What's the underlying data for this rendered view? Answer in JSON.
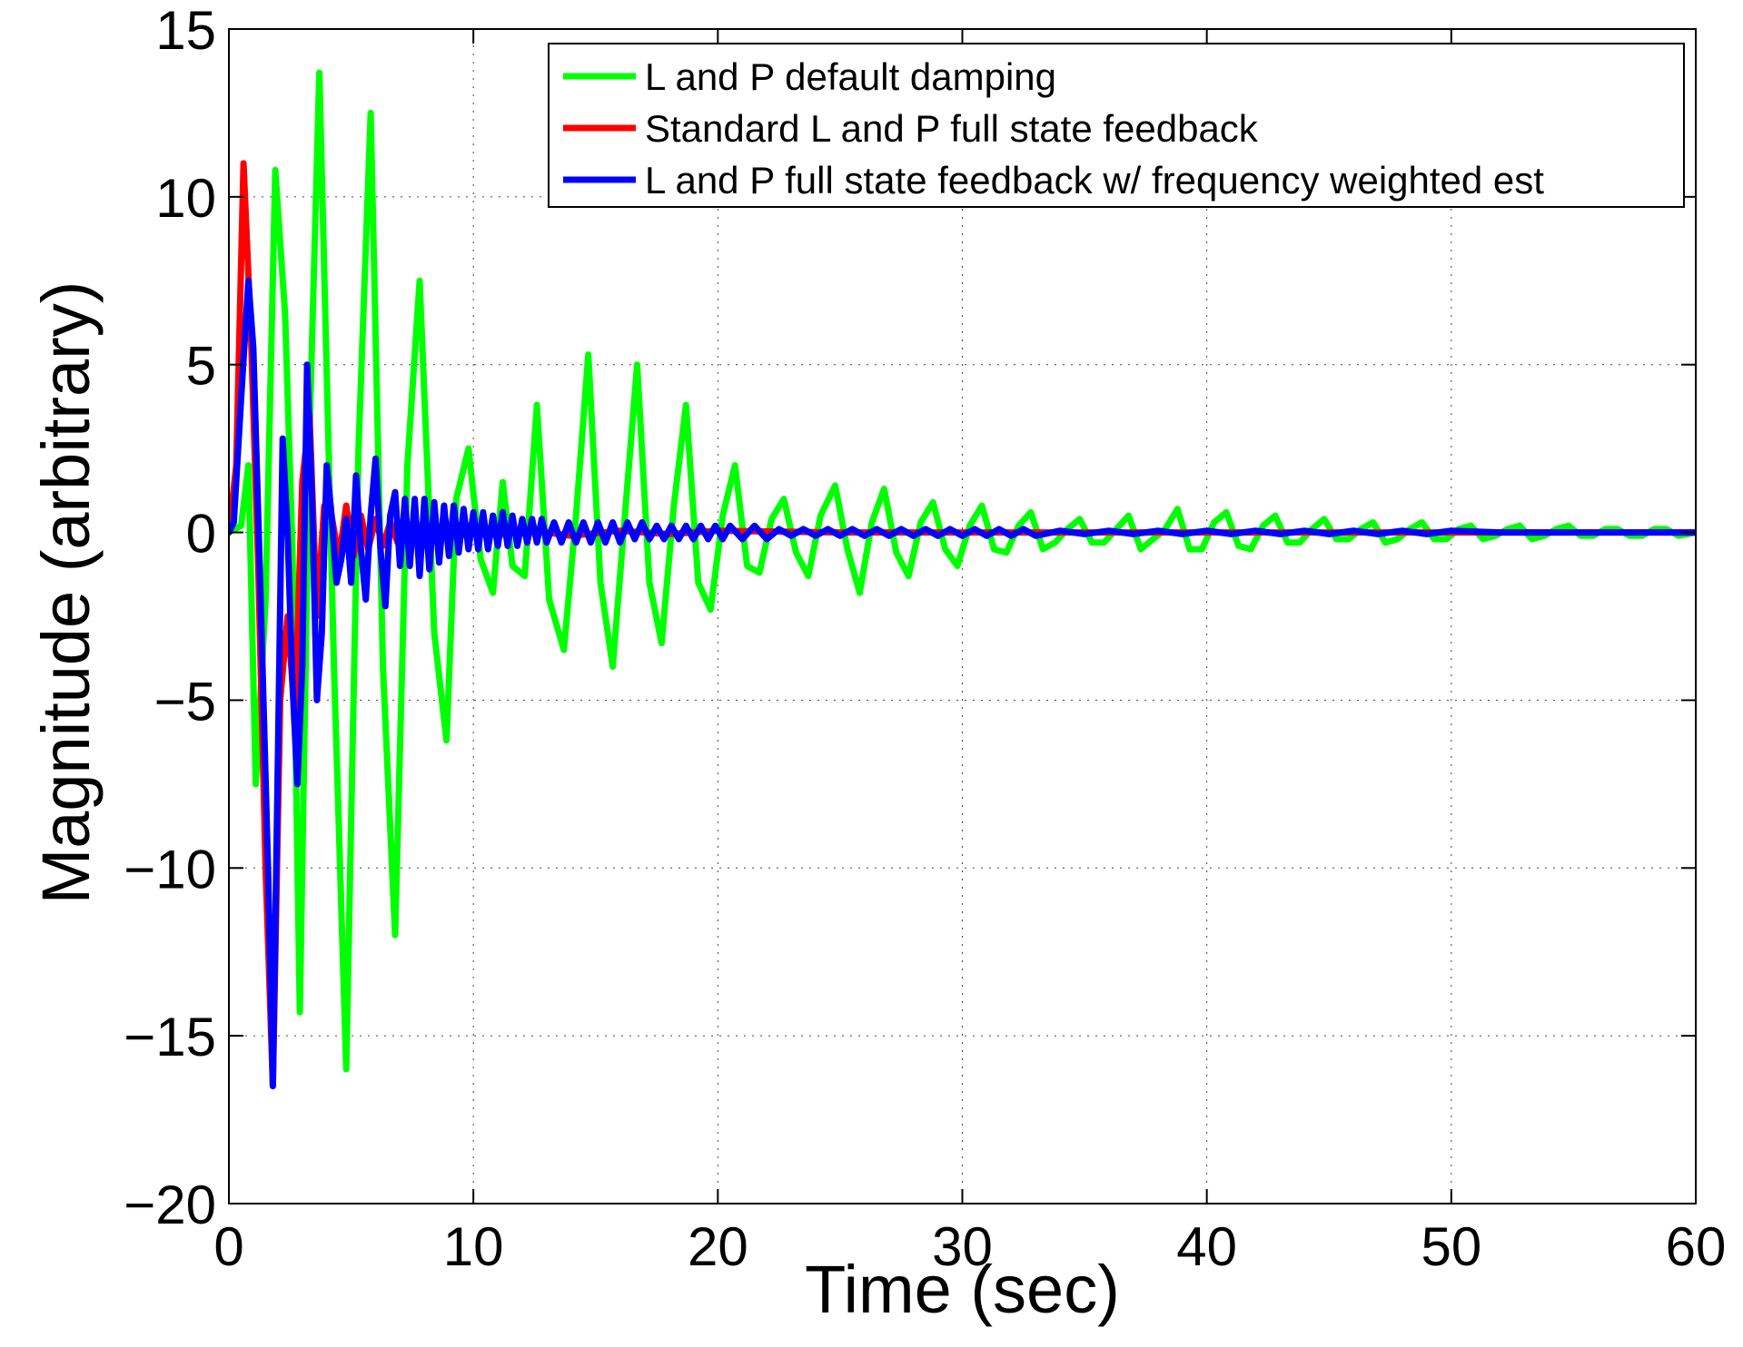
{
  "chart_data": {
    "type": "line",
    "title": "",
    "xlabel": "Time (sec)",
    "ylabel": "Magnitude (arbitrary)",
    "xlim": [
      0,
      60
    ],
    "ylim": [
      -20,
      15
    ],
    "xticks": [
      0,
      10,
      20,
      30,
      40,
      50,
      60
    ],
    "yticks": [
      15,
      10,
      5,
      0,
      -5,
      -10,
      -15,
      -20
    ],
    "xtick_labels": [
      "0",
      "10",
      "20",
      "30",
      "40",
      "50",
      "60"
    ],
    "ytick_labels": [
      "15",
      "10",
      "5",
      "0",
      "−5",
      "−10",
      "−15",
      "−20"
    ],
    "grid": true,
    "legend_position": "top-right",
    "series": [
      {
        "name": "L and P default damping",
        "color": "#00ff00",
        "x": [
          0,
          0.5,
          0.8,
          1.1,
          1.5,
          1.9,
          2.3,
          2.6,
          2.9,
          3.3,
          3.7,
          4.3,
          4.8,
          5.3,
          5.8,
          6.3,
          6.8,
          7.3,
          7.8,
          8.4,
          8.9,
          9.3,
          9.8,
          10.3,
          10.8,
          11.2,
          11.6,
          12.1,
          12.6,
          13.1,
          13.7,
          14.2,
          14.7,
          15.2,
          15.7,
          16.2,
          16.7,
          17.2,
          17.7,
          18.2,
          18.7,
          19.2,
          19.7,
          20.2,
          20.7,
          21.2,
          21.7,
          22.2,
          22.7,
          23.2,
          23.7,
          24.2,
          24.8,
          25.3,
          25.8,
          26.3,
          26.8,
          27.3,
          27.8,
          28.3,
          28.8,
          29.3,
          29.8,
          30.3,
          30.8,
          31.3,
          31.8,
          32.3,
          32.8,
          33.3,
          33.8,
          34.3,
          34.8,
          35.3,
          35.8,
          36.3,
          36.8,
          37.3,
          37.8,
          38.3,
          38.8,
          39.3,
          39.8,
          40.3,
          40.8,
          41.3,
          41.8,
          42.3,
          42.8,
          43.3,
          43.8,
          44.3,
          44.8,
          45.3,
          45.8,
          46.3,
          46.8,
          47.3,
          47.8,
          48.3,
          48.8,
          49.3,
          49.8,
          50.3,
          50.8,
          51.3,
          51.8,
          52.3,
          52.8,
          53.3,
          53.8,
          54.3,
          54.8,
          55.3,
          55.8,
          56.3,
          56.8,
          57.3,
          57.8,
          58.3,
          58.8,
          59.3,
          60
        ],
        "y": [
          0,
          0.2,
          2.0,
          -7.5,
          -2.0,
          10.8,
          6.5,
          -0.5,
          -14.3,
          3.0,
          13.7,
          -4.0,
          -16.0,
          2.5,
          12.5,
          -4.0,
          -12.0,
          2.0,
          7.5,
          -3.0,
          -6.2,
          1.0,
          2.5,
          -0.8,
          -1.8,
          1.5,
          -1.0,
          -1.3,
          3.8,
          -2.0,
          -3.5,
          0.5,
          5.3,
          -1.5,
          -4.0,
          0.5,
          5.0,
          -1.5,
          -3.3,
          0.8,
          3.8,
          -1.5,
          -2.3,
          0.5,
          2.0,
          -1.0,
          -1.2,
          0.4,
          1.0,
          -0.6,
          -1.3,
          0.5,
          1.4,
          -0.5,
          -1.8,
          0.3,
          1.3,
          -0.6,
          -1.3,
          0.3,
          0.9,
          -0.5,
          -1.0,
          0.2,
          0.8,
          -0.5,
          -0.6,
          0.2,
          0.6,
          -0.5,
          -0.3,
          0.1,
          0.4,
          -0.3,
          -0.3,
          0.1,
          0.5,
          -0.5,
          -0.2,
          0.1,
          0.7,
          -0.5,
          -0.5,
          0.3,
          0.6,
          -0.4,
          -0.5,
          0.2,
          0.5,
          -0.3,
          -0.3,
          0.1,
          0.4,
          -0.2,
          -0.2,
          0.1,
          0.3,
          -0.3,
          -0.2,
          0.1,
          0.3,
          -0.2,
          -0.2,
          0.1,
          0.2,
          -0.2,
          -0.1,
          0.1,
          0.2,
          -0.2,
          -0.1,
          0.1,
          0.2,
          -0.1,
          -0.1,
          0.1,
          0.1,
          -0.1,
          -0.1,
          0.1,
          0.1,
          -0.1,
          0
        ]
      },
      {
        "name": "Standard L and P full state feedback",
        "color": "#ff0000",
        "x": [
          0,
          0.3,
          0.6,
          0.9,
          1.2,
          1.5,
          1.8,
          2.1,
          2.4,
          2.7,
          3.0,
          3.3,
          3.6,
          3.9,
          4.2,
          4.5,
          4.8,
          5.1,
          5.4,
          5.7,
          6.0,
          6.3,
          6.6,
          6.9,
          7.2,
          7.5,
          7.8,
          8.1,
          8.4,
          8.7,
          9.0,
          9.5,
          10.0,
          11.0,
          12.0,
          14.0,
          16.0,
          18.0,
          20.0,
          25.0,
          30.0,
          35.0,
          40.0,
          45.0,
          50.0,
          55.0,
          60.0
        ],
        "y": [
          0,
          2.0,
          11.0,
          6.0,
          -1.0,
          -10.0,
          -16.5,
          -5.0,
          -2.5,
          -5.5,
          1.5,
          3.5,
          -2.5,
          0.8,
          0.5,
          -0.8,
          0.8,
          -0.7,
          0.5,
          -0.5,
          0.4,
          -0.4,
          0.3,
          -0.3,
          0.2,
          -0.2,
          0.2,
          -0.2,
          0.1,
          -0.1,
          0.1,
          -0.1,
          0.1,
          -0.1,
          0.1,
          -0.1,
          0.05,
          -0.05,
          0.05,
          0,
          0,
          0,
          0,
          0,
          0,
          0,
          0
        ]
      },
      {
        "name": "L and P full state feedback w/ frequency weighted est",
        "color": "#0000ff",
        "x": [
          0,
          0.2,
          0.5,
          0.8,
          1.0,
          1.3,
          1.6,
          1.8,
          2.0,
          2.2,
          2.4,
          2.6,
          2.8,
          3.0,
          3.2,
          3.4,
          3.6,
          3.8,
          4.0,
          4.2,
          4.4,
          4.6,
          4.8,
          5.0,
          5.2,
          5.4,
          5.6,
          5.8,
          6.0,
          6.2,
          6.4,
          6.6,
          6.8,
          7.0,
          7.2,
          7.4,
          7.6,
          7.8,
          8.0,
          8.2,
          8.4,
          8.6,
          8.8,
          9.0,
          9.2,
          9.4,
          9.6,
          9.8,
          10.0,
          10.2,
          10.4,
          10.6,
          10.8,
          11.0,
          11.2,
          11.4,
          11.6,
          11.8,
          12.0,
          12.2,
          12.4,
          12.6,
          12.8,
          13.0,
          13.3,
          13.6,
          13.9,
          14.2,
          14.5,
          14.8,
          15.1,
          15.4,
          15.7,
          16.0,
          16.3,
          16.6,
          16.9,
          17.2,
          17.5,
          17.8,
          18.1,
          18.4,
          18.7,
          19.0,
          19.3,
          19.6,
          19.9,
          20.2,
          20.5,
          21.0,
          21.5,
          22.0,
          22.5,
          23.0,
          23.5,
          24.0,
          24.5,
          25.0,
          25.5,
          26.0,
          26.5,
          27.0,
          27.5,
          28.0,
          28.5,
          29.0,
          29.5,
          30.0,
          30.5,
          31.0,
          31.5,
          32.0,
          32.5,
          33.0,
          34.0,
          35.0,
          36.0,
          37.0,
          38.0,
          39.0,
          40.0,
          41.0,
          42.0,
          43.0,
          44.0,
          45.0,
          46.0,
          47.0,
          48.0,
          49.0,
          50.0,
          52.0,
          54.0,
          56.0,
          58.0,
          60.0
        ],
        "y": [
          0,
          0.3,
          4.0,
          7.5,
          5.5,
          -2.0,
          -10.0,
          -16.5,
          -7.0,
          2.8,
          0.0,
          -4.5,
          -7.5,
          -4.0,
          5.0,
          1.0,
          -5.0,
          -3.0,
          2.0,
          0.5,
          -1.5,
          -0.8,
          0.4,
          -1.5,
          1.7,
          -0.5,
          -2.0,
          0.5,
          2.2,
          -0.5,
          -2.2,
          0.5,
          1.2,
          -1.0,
          1.0,
          -1.0,
          1.0,
          -1.3,
          1.0,
          -1.1,
          0.9,
          -0.9,
          0.8,
          -0.7,
          0.8,
          -0.6,
          0.7,
          -0.5,
          0.6,
          -0.5,
          0.6,
          -0.5,
          0.5,
          -0.4,
          0.6,
          -0.4,
          0.5,
          -0.4,
          0.4,
          -0.3,
          0.4,
          -0.3,
          0.4,
          -0.3,
          0.3,
          -0.3,
          0.3,
          -0.3,
          0.3,
          -0.3,
          0.3,
          -0.3,
          0.3,
          -0.3,
          0.3,
          -0.2,
          0.3,
          -0.2,
          0.2,
          -0.2,
          0.2,
          -0.2,
          0.2,
          -0.2,
          0.2,
          -0.2,
          0.2,
          -0.2,
          0.2,
          -0.2,
          0.2,
          -0.2,
          0.1,
          -0.1,
          0.1,
          -0.1,
          0.1,
          -0.1,
          0.1,
          -0.1,
          0.1,
          -0.1,
          0.1,
          -0.1,
          0.1,
          -0.1,
          0.1,
          -0.1,
          0.1,
          -0.1,
          0.1,
          -0.1,
          0.1,
          -0.1,
          0.05,
          -0.05,
          0.05,
          -0.05,
          0.05,
          -0.05,
          0.05,
          -0.05,
          0.05,
          -0.05,
          0.05,
          -0.05,
          0.05,
          -0.05,
          0.05,
          -0.05,
          0.05,
          0,
          0,
          0,
          0,
          0
        ]
      }
    ]
  }
}
